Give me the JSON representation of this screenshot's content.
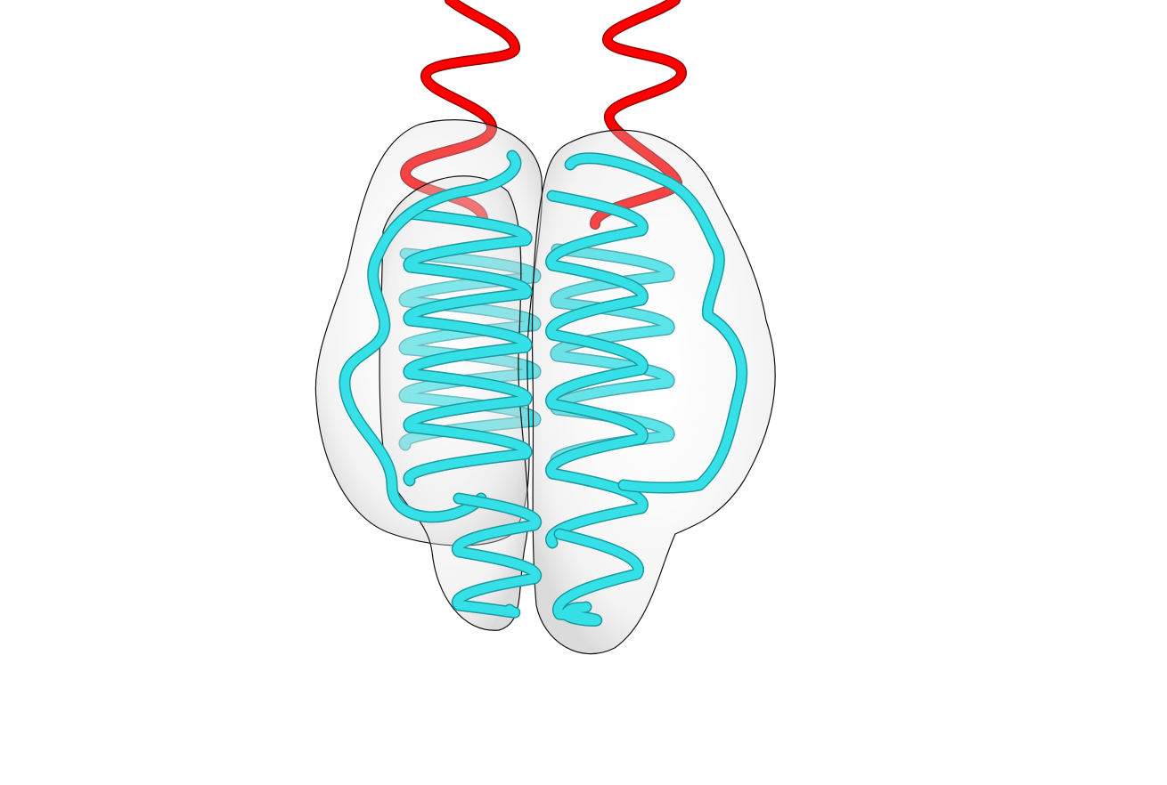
{
  "scene": {
    "background_color": "#ffffff",
    "surface_color": "#e8e8e8",
    "surface_outline_color": "#111111",
    "helix_color": "#35e0e6",
    "helix_shadow_color": "#1a9aa0",
    "tail_color": "#ff0000",
    "tail_shadow_color": "#9a0000"
  }
}
